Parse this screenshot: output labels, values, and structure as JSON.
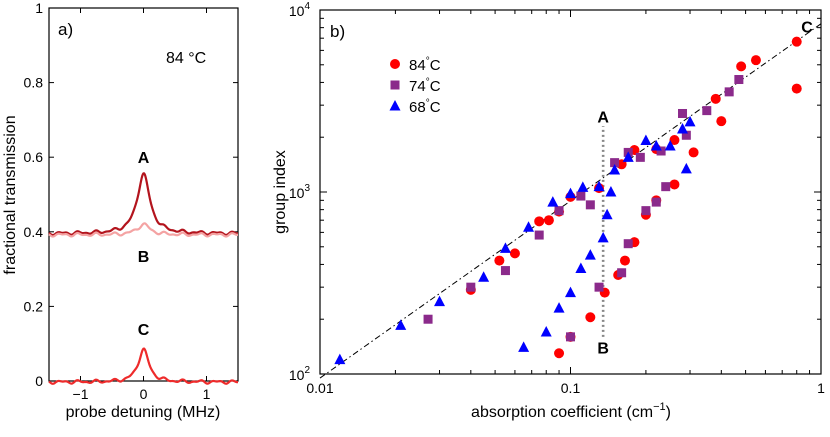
{
  "chart_data": [
    {
      "panel": "a",
      "type": "line",
      "panel_label": "a)",
      "annotation": "84 °C",
      "xlabel": "probe detuning (MHz)",
      "ylabel": "fractional transmission",
      "xlim": [
        -1.5,
        1.5
      ],
      "ylim": [
        0,
        1
      ],
      "xticks": [
        -1,
        0,
        1
      ],
      "yticks": [
        0,
        0.2,
        0.4,
        0.6,
        0.8,
        1
      ],
      "ytick_labels": [
        "0",
        "0.2",
        "0.4",
        "0.6",
        "0.8",
        "1"
      ],
      "series": [
        {
          "name": "A",
          "color": "#b3141d",
          "baseline": 0.395,
          "peak": 0.555,
          "width_mhz": 0.12
        },
        {
          "name": "B",
          "color": "#f4a3a3",
          "baseline": 0.392,
          "peak": 0.42,
          "width_mhz": 0.12
        },
        {
          "name": "C",
          "color": "#ee2b2b",
          "baseline": -0.003,
          "peak": 0.085,
          "width_mhz": 0.1
        }
      ],
      "peak_labels": [
        {
          "text": "A",
          "x": 0,
          "y": 0.6
        },
        {
          "text": "B",
          "x": 0,
          "y": 0.335
        },
        {
          "text": "C",
          "x": 0,
          "y": 0.14
        }
      ]
    },
    {
      "panel": "b",
      "type": "scatter",
      "panel_label": "b)",
      "xlabel": "absorption coefficient (cm",
      "xlabel_sup": "−1",
      "xlabel_end": ")",
      "ylabel": "group index",
      "xscale": "log",
      "yscale": "log",
      "xlim": [
        0.01,
        1
      ],
      "ylim": [
        100,
        10000
      ],
      "xtick_labels": [
        "0.01",
        "0.1",
        "1"
      ],
      "ytick_labels": [
        {
          "base": "10",
          "exp": "2"
        },
        {
          "base": "10",
          "exp": "3"
        },
        {
          "base": "10",
          "exp": "4"
        }
      ],
      "fit_line": {
        "x": [
          0.01,
          1
        ],
        "y": [
          95,
          8400
        ],
        "style": "dash-dot",
        "color": "#000000"
      },
      "vertical_line": {
        "x": 0.135,
        "y": [
          160,
          2300
        ],
        "style": "dotted",
        "color": "#888888"
      },
      "labels": [
        {
          "text": "A",
          "x": 0.135,
          "y": 2600
        },
        {
          "text": "B",
          "x": 0.135,
          "y": 140
        },
        {
          "text": "C",
          "x": 0.88,
          "y": 8100
        }
      ],
      "legend": {
        "location": "top-left"
      },
      "series": [
        {
          "name": "84",
          "legend_unit": "C",
          "marker": "circle",
          "color": "#ff0000",
          "points": [
            [
              0.04,
              290
            ],
            [
              0.052,
              420
            ],
            [
              0.06,
              460
            ],
            [
              0.075,
              690
            ],
            [
              0.082,
              700
            ],
            [
              0.09,
              780
            ],
            [
              0.1,
              940
            ],
            [
              0.13,
              1050
            ],
            [
              0.16,
              1420
            ],
            [
              0.18,
              1700
            ],
            [
              0.22,
              1720
            ],
            [
              0.26,
              1930
            ],
            [
              0.31,
              1650
            ],
            [
              0.38,
              3250
            ],
            [
              0.48,
              4900
            ],
            [
              0.55,
              5300
            ],
            [
              0.8,
              6700
            ],
            [
              0.8,
              3700
            ],
            [
              0.4,
              2450
            ],
            [
              0.26,
              1100
            ],
            [
              0.22,
              900
            ],
            [
              0.2,
              750
            ],
            [
              0.18,
              530
            ],
            [
              0.165,
              420
            ],
            [
              0.155,
              350
            ],
            [
              0.137,
              280
            ],
            [
              0.12,
              205
            ],
            [
              0.1,
              160
            ],
            [
              0.09,
              130
            ]
          ]
        },
        {
          "name": "74",
          "legend_unit": "C",
          "marker": "square",
          "color": "#8b2a8b",
          "points": [
            [
              0.027,
              200
            ],
            [
              0.04,
              300
            ],
            [
              0.055,
              370
            ],
            [
              0.075,
              580
            ],
            [
              0.09,
              790
            ],
            [
              0.11,
              950
            ],
            [
              0.12,
              850
            ],
            [
              0.15,
              1450
            ],
            [
              0.17,
              1650
            ],
            [
              0.19,
              1550
            ],
            [
              0.23,
              1680
            ],
            [
              0.28,
              2700
            ],
            [
              0.35,
              2800
            ],
            [
              0.43,
              3550
            ],
            [
              0.47,
              4150
            ],
            [
              0.29,
              2050
            ],
            [
              0.24,
              1070
            ],
            [
              0.22,
              880
            ],
            [
              0.2,
              790
            ],
            [
              0.17,
              520
            ],
            [
              0.16,
              360
            ],
            [
              0.13,
              300
            ],
            [
              0.1,
              160
            ]
          ]
        },
        {
          "name": "68",
          "legend_unit": "C",
          "marker": "triangle",
          "color": "#0000ff",
          "points": [
            [
              0.012,
              120
            ],
            [
              0.021,
              185
            ],
            [
              0.03,
              250
            ],
            [
              0.045,
              340
            ],
            [
              0.055,
              490
            ],
            [
              0.068,
              640
            ],
            [
              0.085,
              880
            ],
            [
              0.1,
              980
            ],
            [
              0.112,
              1060
            ],
            [
              0.13,
              1070
            ],
            [
              0.15,
              1320
            ],
            [
              0.17,
              1550
            ],
            [
              0.2,
              1920
            ],
            [
              0.22,
              1790
            ],
            [
              0.25,
              1790
            ],
            [
              0.28,
              2220
            ],
            [
              0.29,
              1340
            ],
            [
              0.3,
              2430
            ],
            [
              0.145,
              1000
            ],
            [
              0.14,
              750
            ],
            [
              0.135,
              560
            ],
            [
              0.12,
              450
            ],
            [
              0.11,
              380
            ],
            [
              0.1,
              280
            ],
            [
              0.09,
              230
            ],
            [
              0.08,
              170
            ],
            [
              0.065,
              140
            ]
          ]
        }
      ]
    }
  ]
}
